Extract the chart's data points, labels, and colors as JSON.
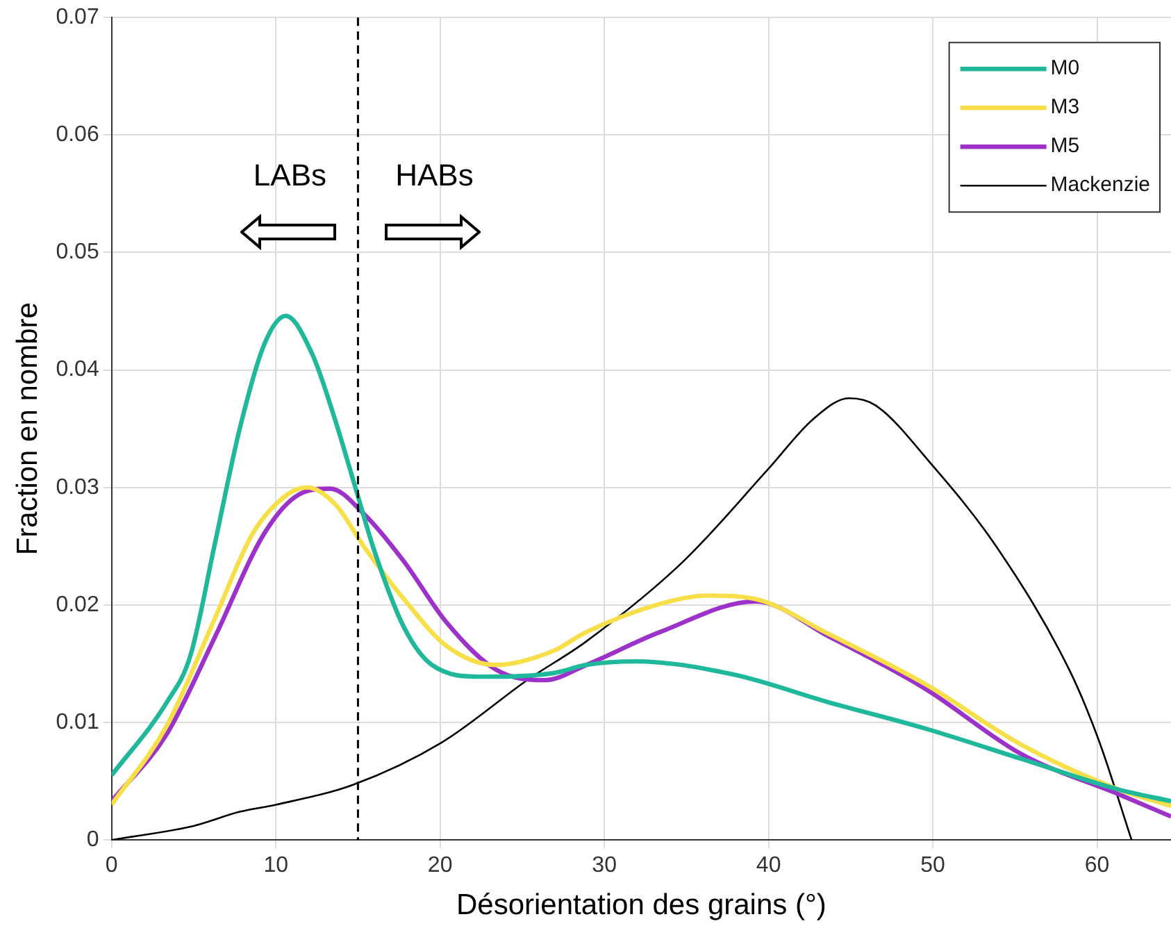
{
  "chart_data": {
    "type": "line",
    "xlabel": "Désorientation des grains (°)",
    "ylabel": "Fraction en nombre",
    "xlim": [
      0,
      64.5
    ],
    "xticks": [
      0,
      10,
      20,
      30,
      40,
      50,
      60
    ],
    "ylim": [
      0,
      0.07
    ],
    "yticks": [
      0,
      0.01,
      0.02,
      0.03,
      0.04,
      0.05,
      0.06,
      0.07
    ],
    "grid": true,
    "legend": "top right",
    "marker": "none",
    "line_style": "solid",
    "ref_lines": [
      {
        "axis": "x",
        "value": 15,
        "color": "#000000",
        "line_style": "dashed"
      }
    ],
    "annotations": [
      "LABs",
      "HABs"
    ],
    "series": [
      {
        "name": "M0",
        "color": "#1fb89a",
        "x": [
          0,
          3.35,
          4.8,
          6.3,
          7.8,
          9.3,
          10.6,
          12.2,
          13.6,
          14.8,
          16,
          17.8,
          19.5,
          22.5,
          26.9,
          28.9,
          31.9,
          37.8,
          43.7,
          49.5,
          55.4,
          61.3,
          64.5
        ],
        "values": [
          0.0055,
          0.0117,
          0.0157,
          0.0253,
          0.035,
          0.0422,
          0.0446,
          0.0414,
          0.0358,
          0.0302,
          0.0246,
          0.0181,
          0.0149,
          0.0139,
          0.0142,
          0.0149,
          0.0152,
          0.0141,
          0.0117,
          0.0095,
          0.0069,
          0.0043,
          0.0033
        ]
      },
      {
        "name": "M3",
        "color": "#f7df4a",
        "x": [
          0,
          3.35,
          6.3,
          8.6,
          10.7,
          11.9,
          13.6,
          15.4,
          17.8,
          20.4,
          23.4,
          26.9,
          28.9,
          33.4,
          36.3,
          39.2,
          43.7,
          49.5,
          55.4,
          61.3,
          64.5
        ],
        "values": [
          0.003,
          0.0097,
          0.0189,
          0.0261,
          0.0294,
          0.03,
          0.0286,
          0.0249,
          0.0205,
          0.0165,
          0.0149,
          0.0161,
          0.0177,
          0.0201,
          0.0208,
          0.0205,
          0.0175,
          0.0133,
          0.0081,
          0.0043,
          0.0029
        ]
      },
      {
        "name": "M5",
        "color": "#9c32c9",
        "x": [
          0,
          3.35,
          6.3,
          9.3,
          11.4,
          13.3,
          15.4,
          17.8,
          20.4,
          23.4,
          26.4,
          28.9,
          33.4,
          39.2,
          43.7,
          49.5,
          55.4,
          61.3,
          64.5
        ],
        "values": [
          0.0033,
          0.009,
          0.0173,
          0.0261,
          0.0294,
          0.0299,
          0.0277,
          0.0237,
          0.0185,
          0.0145,
          0.0136,
          0.0149,
          0.0177,
          0.0203,
          0.0173,
          0.0129,
          0.0073,
          0.0039,
          0.002
        ]
      },
      {
        "name": "Mackenzie",
        "color": "#000000",
        "x": [
          0,
          5,
          7.8,
          10,
          14.7,
          20.1,
          25.4,
          28.9,
          34.8,
          40,
          42.7,
          44.9,
          46.5,
          49.9,
          53.9,
          58.3,
          60.1,
          62.1
        ],
        "values": [
          0,
          0.0012,
          0.0024,
          0.003,
          0.0047,
          0.0083,
          0.0137,
          0.0169,
          0.0237,
          0.0316,
          0.0358,
          0.0376,
          0.037,
          0.032,
          0.0249,
          0.0145,
          0.0085,
          0
        ]
      }
    ]
  }
}
